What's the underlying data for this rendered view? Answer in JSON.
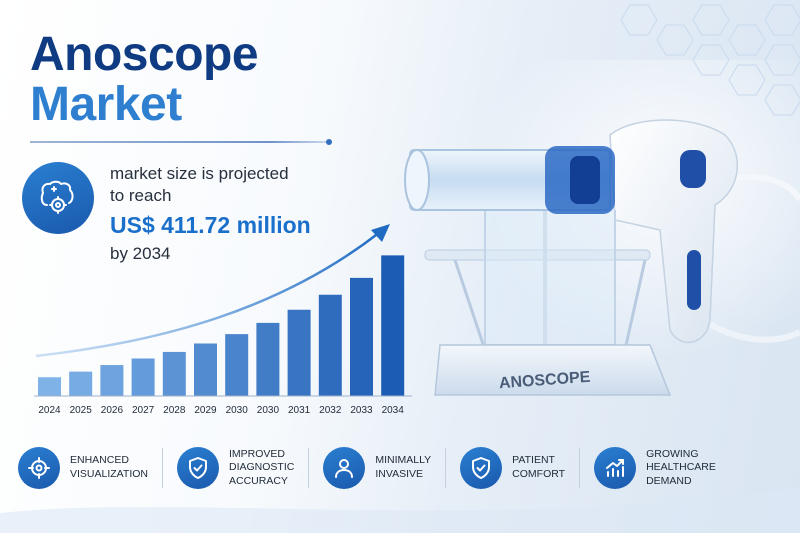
{
  "title": {
    "line1": "Anoscope",
    "line2": "Market"
  },
  "projection": {
    "line1": "market size is projected",
    "line2": "to reach",
    "amount": "US$ 411.72 million",
    "year_text": "by 2034"
  },
  "device": {
    "label": "ANOSCOPE"
  },
  "chart_data": {
    "type": "bar",
    "categories": [
      "2024",
      "2025",
      "2026",
      "2027",
      "2028",
      "2029",
      "2030",
      "2030",
      "2031",
      "2032",
      "2033",
      "2034"
    ],
    "values": [
      20,
      26,
      33,
      40,
      47,
      56,
      66,
      78,
      92,
      108,
      126,
      150
    ],
    "title": "",
    "xlabel": "",
    "ylabel": "",
    "ylim": [
      0,
      160
    ],
    "trend_arrow": true
  },
  "features": [
    {
      "label": "ENHANCED\nVISUALIZATION",
      "icon": "crosshair-icon"
    },
    {
      "label": "IMPROVED\nDIAGNOSTIC\nACCURACY",
      "icon": "shield-check-icon"
    },
    {
      "label": "MINIMALLY\nINVASIVE",
      "icon": "person-icon"
    },
    {
      "label": "PATIENT\nCOMFORT",
      "icon": "shield-check-icon"
    },
    {
      "label": "GROWING\nHEALTHCARE\nDEMAND",
      "icon": "growth-chart-icon"
    }
  ],
  "colors": {
    "title_dark": "#0f3b82",
    "title_accent": "#2f7fd0",
    "amount": "#1a6fcb",
    "icon_bg": "#1f6cc2",
    "bar_light": "#7fb3e8",
    "bar_dark": "#1d5cb4"
  }
}
